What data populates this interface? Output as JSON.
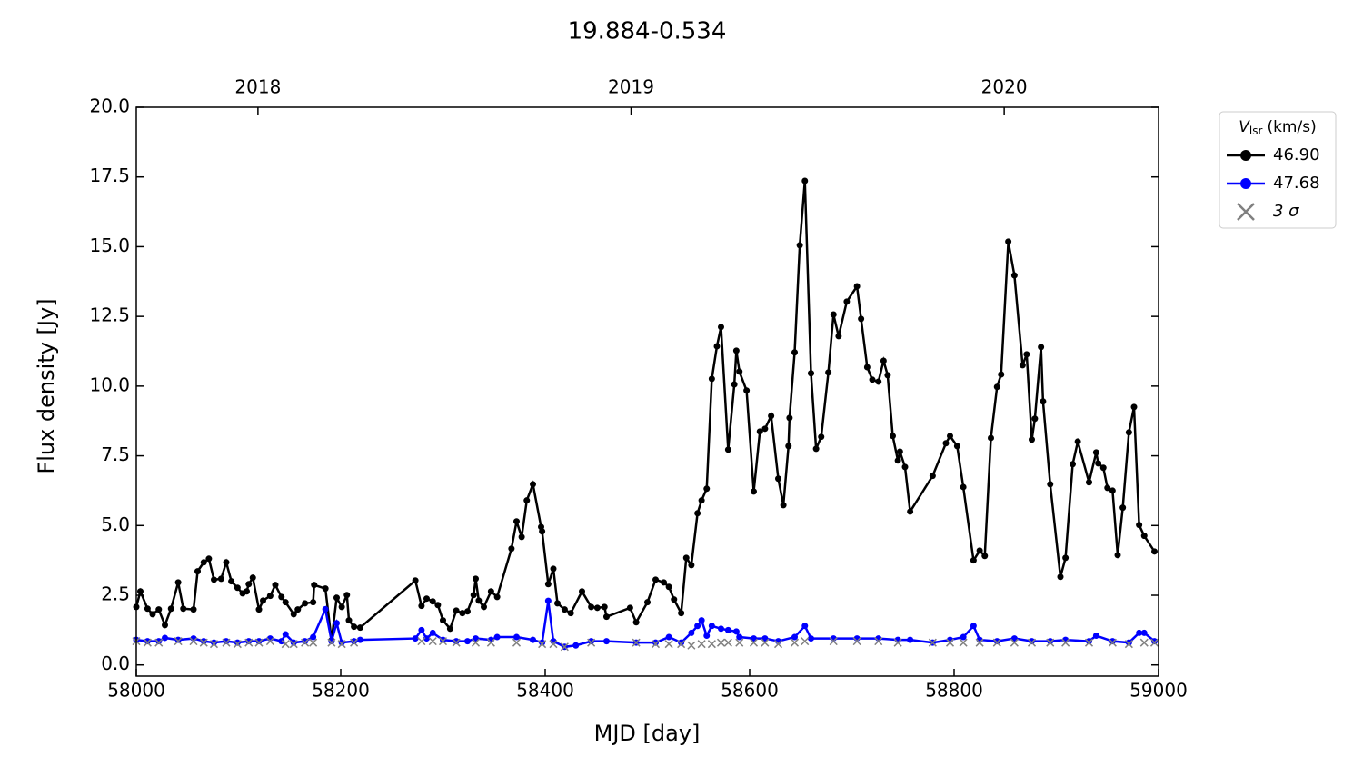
{
  "chart_data": {
    "type": "line",
    "title": "19.884-0.534",
    "xlabel": "MJD [day]",
    "ylabel": "Flux density [Jy]",
    "xlim": [
      58000,
      59000
    ],
    "ylim": [
      -0.4,
      20
    ],
    "xticks": [
      58000,
      58200,
      58400,
      58600,
      58800,
      59000
    ],
    "yticks": [
      {
        "value": 0,
        "label": "0.0"
      },
      2.5,
      {
        "value": 5,
        "label": "5.0"
      },
      7.5,
      {
        "value": 10,
        "label": "10.0"
      },
      12.5,
      {
        "value": 15,
        "label": "15.0"
      },
      17.5,
      {
        "value": 20,
        "label": "20.0"
      }
    ],
    "x2ticks": [
      {
        "value": 58119,
        "label": "2018"
      },
      {
        "value": 58484,
        "label": "2019"
      },
      {
        "value": 58849,
        "label": "2020"
      }
    ],
    "legend_title": {
      "symbol": "V",
      "subscript": "lsr",
      "unit": "(km/s)"
    },
    "legend_position": "outside upper right",
    "series": [
      {
        "name": "46.90",
        "color": "#000000",
        "marker": "o",
        "line": true,
        "x": [
          58000,
          58004,
          58011,
          58016,
          58022,
          58028,
          58034,
          58041,
          58046,
          58056,
          58060,
          58066,
          58071,
          58076,
          58083,
          58088,
          58093,
          58099,
          58104,
          58108,
          58110,
          58114,
          58120,
          58124,
          58131,
          58136,
          58142,
          58146,
          58154,
          58158,
          58165,
          58173,
          58174,
          58185,
          58191,
          58196,
          58201,
          58206,
          58208,
          58213,
          58219,
          58273,
          58279,
          58284,
          58290,
          58295,
          58300,
          58307,
          58313,
          58319,
          58324,
          58330,
          58332,
          58335,
          58340,
          58347,
          58353,
          58367,
          58372,
          58377,
          58382,
          58388,
          58396,
          58397,
          58403,
          58408,
          58412,
          58419,
          58425,
          58436,
          58445,
          58451,
          58458,
          58460,
          58483,
          58489,
          58500,
          58508,
          58516,
          58521,
          58526,
          58533,
          58538,
          58543,
          58549,
          58553,
          58558,
          58563,
          58568,
          58572,
          58579,
          58585,
          58587,
          58590,
          58597,
          58604,
          58610,
          58615,
          58621,
          58628,
          58633,
          58638,
          58639,
          58644,
          58649,
          58654,
          58660,
          58665,
          58670,
          58677,
          58682,
          58687,
          58695,
          58705,
          58709,
          58715,
          58720,
          58726,
          58731,
          58735,
          58740,
          58745,
          58747,
          58752,
          58757,
          58779,
          58792,
          58796,
          58803,
          58809,
          58819,
          58825,
          58830,
          58836,
          58842,
          58846,
          58853,
          58859,
          58867,
          58871,
          58876,
          58879,
          58885,
          58887,
          58894,
          58904,
          58909,
          58916,
          58921,
          58932,
          58939,
          58941,
          58946,
          58950,
          58955,
          58960,
          58965,
          58971,
          58976,
          58981,
          58986,
          58996
        ],
        "values": [
          2.08,
          2.64,
          2.02,
          1.82,
          1.99,
          1.43,
          2.02,
          2.96,
          2.02,
          1.99,
          3.36,
          3.68,
          3.81,
          3.06,
          3.09,
          3.68,
          3.0,
          2.77,
          2.57,
          2.64,
          2.9,
          3.13,
          1.99,
          2.31,
          2.48,
          2.87,
          2.44,
          2.25,
          1.82,
          1.99,
          2.21,
          2.25,
          2.87,
          2.74,
          0.88,
          2.41,
          2.08,
          2.51,
          1.6,
          1.37,
          1.34,
          3.03,
          2.12,
          2.38,
          2.28,
          2.15,
          1.6,
          1.3,
          1.95,
          1.86,
          1.92,
          2.51,
          3.09,
          2.31,
          2.08,
          2.64,
          2.44,
          4.17,
          5.15,
          4.59,
          5.9,
          6.48,
          4.95,
          4.79,
          2.9,
          3.45,
          2.21,
          1.99,
          1.86,
          2.64,
          2.08,
          2.05,
          2.08,
          1.73,
          2.05,
          1.53,
          2.25,
          3.06,
          2.96,
          2.8,
          2.35,
          1.86,
          3.84,
          3.58,
          5.44,
          5.9,
          6.32,
          10.26,
          11.43,
          12.12,
          7.72,
          10.06,
          11.27,
          10.52,
          9.84,
          6.22,
          8.37,
          8.47,
          8.93,
          6.68,
          5.73,
          7.85,
          8.86,
          11.21,
          15.05,
          17.36,
          10.46,
          7.75,
          8.18,
          10.49,
          12.57,
          11.79,
          13.03,
          13.58,
          12.41,
          10.68,
          10.23,
          10.16,
          10.91,
          10.39,
          8.21,
          7.33,
          7.65,
          7.1,
          5.5,
          6.78,
          7.95,
          8.21,
          7.85,
          6.38,
          3.75,
          4.1,
          3.91,
          8.14,
          9.97,
          10.42,
          15.18,
          13.97,
          10.75,
          11.14,
          8.08,
          8.83,
          11.4,
          9.45,
          6.48,
          3.16,
          3.84,
          7.2,
          8.01,
          6.55,
          7.62,
          7.23,
          7.07,
          6.35,
          6.25,
          3.94,
          5.64,
          8.34,
          9.25,
          5.02,
          4.63,
          4.07
        ]
      },
      {
        "name": "47.68",
        "color": "#0000ff",
        "marker": "o",
        "line": true,
        "x": [
          58000,
          58011,
          58022,
          58028,
          58041,
          58056,
          58066,
          58076,
          58088,
          58099,
          58110,
          58120,
          58131,
          58142,
          58146,
          58154,
          58165,
          58173,
          58185,
          58191,
          58196,
          58201,
          58213,
          58219,
          58273,
          58279,
          58284,
          58290,
          58300,
          58313,
          58324,
          58332,
          58347,
          58353,
          58372,
          58388,
          58397,
          58403,
          58408,
          58419,
          58430,
          58445,
          58460,
          58489,
          58508,
          58521,
          58533,
          58543,
          58549,
          58553,
          58558,
          58563,
          58572,
          58579,
          58587,
          58590,
          58604,
          58615,
          58628,
          58644,
          58654,
          58660,
          58682,
          58705,
          58726,
          58745,
          58757,
          58779,
          58796,
          58809,
          58819,
          58825,
          58842,
          58859,
          58876,
          58894,
          58909,
          58932,
          58939,
          58955,
          58971,
          58981,
          58986,
          58996
        ],
        "values": [
          0.9,
          0.85,
          0.85,
          0.97,
          0.9,
          0.95,
          0.85,
          0.8,
          0.85,
          0.8,
          0.85,
          0.85,
          0.95,
          0.85,
          1.1,
          0.8,
          0.85,
          1.0,
          2.0,
          0.85,
          1.5,
          0.8,
          0.85,
          0.9,
          0.95,
          1.25,
          0.95,
          1.15,
          0.9,
          0.85,
          0.85,
          0.95,
          0.9,
          1.0,
          1.0,
          0.9,
          0.8,
          2.3,
          0.85,
          0.65,
          0.7,
          0.85,
          0.85,
          0.8,
          0.8,
          1.0,
          0.8,
          1.15,
          1.4,
          1.6,
          1.05,
          1.4,
          1.3,
          1.25,
          1.2,
          1.0,
          0.95,
          0.95,
          0.85,
          1.0,
          1.4,
          0.95,
          0.95,
          0.95,
          0.95,
          0.9,
          0.9,
          0.8,
          0.9,
          1.0,
          1.4,
          0.9,
          0.85,
          0.95,
          0.85,
          0.85,
          0.9,
          0.85,
          1.05,
          0.85,
          0.8,
          1.15,
          1.15,
          0.85
        ]
      },
      {
        "name": "3 σ",
        "color": "#808080",
        "marker": "x",
        "line": false,
        "x": [
          58000,
          58011,
          58022,
          58041,
          58056,
          58066,
          58076,
          58088,
          58099,
          58110,
          58120,
          58131,
          58146,
          58154,
          58165,
          58173,
          58191,
          58201,
          58213,
          58279,
          58290,
          58300,
          58313,
          58332,
          58347,
          58372,
          58397,
          58408,
          58419,
          58445,
          58489,
          58508,
          58521,
          58533,
          58543,
          58553,
          58563,
          58572,
          58579,
          58590,
          58604,
          58615,
          58628,
          58644,
          58654,
          58682,
          58705,
          58726,
          58745,
          58779,
          58796,
          58809,
          58825,
          58842,
          58859,
          58876,
          58894,
          58909,
          58932,
          58955,
          58971,
          58986,
          58996
        ],
        "values": [
          0.85,
          0.8,
          0.8,
          0.85,
          0.85,
          0.8,
          0.75,
          0.8,
          0.75,
          0.8,
          0.8,
          0.85,
          0.75,
          0.75,
          0.8,
          0.8,
          0.8,
          0.75,
          0.8,
          0.85,
          0.85,
          0.85,
          0.8,
          0.8,
          0.8,
          0.8,
          0.75,
          0.75,
          0.65,
          0.8,
          0.8,
          0.75,
          0.75,
          0.75,
          0.7,
          0.75,
          0.75,
          0.8,
          0.8,
          0.8,
          0.8,
          0.8,
          0.75,
          0.8,
          0.85,
          0.85,
          0.85,
          0.85,
          0.8,
          0.8,
          0.8,
          0.8,
          0.8,
          0.8,
          0.8,
          0.8,
          0.8,
          0.8,
          0.8,
          0.8,
          0.75,
          0.8,
          0.8
        ]
      }
    ]
  }
}
